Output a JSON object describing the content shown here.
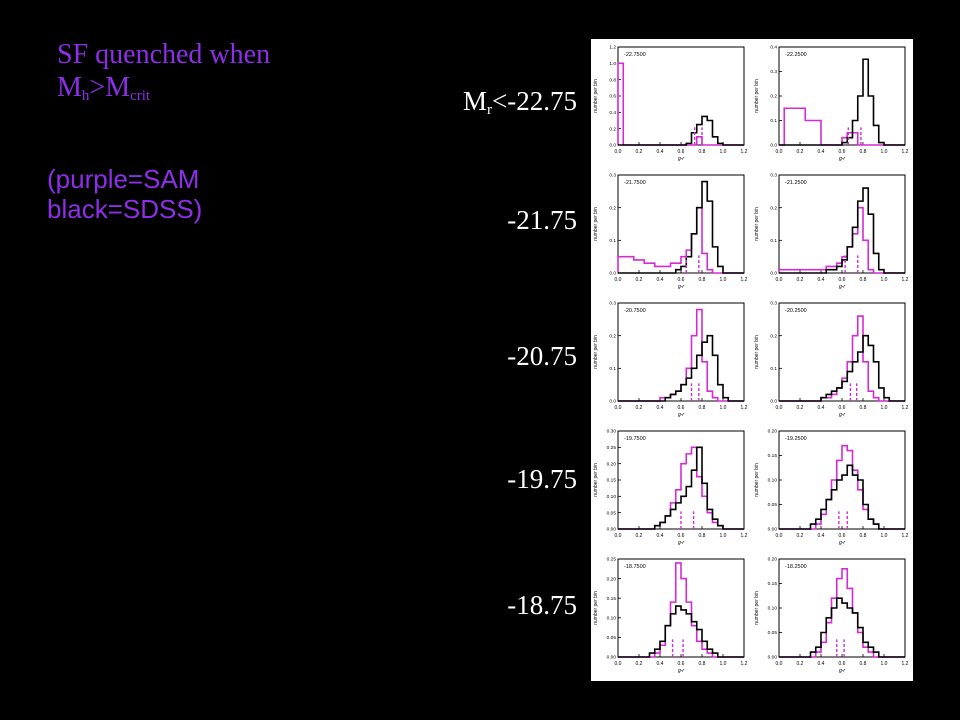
{
  "title": {
    "line1": "SF quenched when",
    "m_h": "M",
    "h_sub": "h",
    "gt": ">",
    "m_crit": "M",
    "crit_sub": "crit"
  },
  "legend_note": {
    "line1": "(purple=SAM",
    "line2": "black=SDSS)"
  },
  "row_labels": [
    {
      "main": "M",
      "sub": "r",
      "rest": "<-22.75"
    },
    {
      "text": "-21.75"
    },
    {
      "text": "-20.75"
    },
    {
      "text": "-19.75"
    },
    {
      "text": "-18.75"
    }
  ],
  "colors": {
    "background": "#000000",
    "accent_purple": "#8d2ee8",
    "sam": "#d42bd4",
    "sdss": "#000000"
  },
  "chart_data": {
    "type": "histogram_grid",
    "xlabel": "g-r",
    "ylabel": "number per bin",
    "xlim": [
      0.0,
      1.2
    ],
    "x_ticks": [
      "0.0",
      "0.2",
      "0.4",
      "0.6",
      "0.8",
      "1.0",
      "1.2"
    ],
    "bin_edges": [
      0.0,
      0.05,
      0.1,
      0.15,
      0.2,
      0.25,
      0.3,
      0.35,
      0.4,
      0.45,
      0.5,
      0.55,
      0.6,
      0.65,
      0.7,
      0.75,
      0.8,
      0.85,
      0.9,
      0.95,
      1.0,
      1.05,
      1.1,
      1.15,
      1.2
    ],
    "legend": "purple=SAM, black=SDSS",
    "panels": [
      {
        "label": "-22.7500",
        "ylim": [
          0,
          1.2
        ],
        "y_ticks": [
          "0.0",
          "0.2",
          "0.4",
          "0.6",
          "0.8",
          "1.0",
          "1.2"
        ],
        "sam": [
          1.0,
          0,
          0,
          0,
          0,
          0,
          0,
          0,
          0,
          0,
          0,
          0,
          0,
          0,
          0,
          0.1,
          0,
          0,
          0,
          0,
          0,
          0,
          0,
          0
        ],
        "sdss": [
          0,
          0,
          0,
          0,
          0,
          0,
          0,
          0,
          0,
          0,
          0,
          0,
          0,
          0.02,
          0.15,
          0.25,
          0.35,
          0.3,
          0.1,
          0.02,
          0,
          0,
          0,
          0
        ],
        "sam_median": 0.73,
        "sdss_median": 0.8
      },
      {
        "label": "-22.2500",
        "ylim": [
          0,
          0.4
        ],
        "y_ticks": [
          "0.0",
          "0.1",
          "0.2",
          "0.3",
          "0.4"
        ],
        "sam": [
          0,
          0.15,
          0.15,
          0.15,
          0.15,
          0.1,
          0.1,
          0.1,
          0,
          0,
          0,
          0,
          0.03,
          0.05,
          0.05,
          0,
          0,
          0,
          0,
          0,
          0,
          0,
          0,
          0
        ],
        "sdss": [
          0,
          0,
          0,
          0,
          0,
          0,
          0,
          0,
          0,
          0,
          0,
          0,
          0.01,
          0.03,
          0.1,
          0.2,
          0.35,
          0.2,
          0.08,
          0.01,
          0,
          0,
          0,
          0
        ],
        "sam_median": 0.66,
        "sdss_median": 0.78
      },
      {
        "label": "-21.7500",
        "ylim": [
          0,
          0.3
        ],
        "y_ticks": [
          "0.0",
          "0.1",
          "0.2",
          "0.3"
        ],
        "sam": [
          0.05,
          0.05,
          0.05,
          0.04,
          0.04,
          0.03,
          0.03,
          0.02,
          0.02,
          0.02,
          0.03,
          0.03,
          0.05,
          0.07,
          0.12,
          0.2,
          0.06,
          0.01,
          0,
          0,
          0,
          0,
          0,
          0
        ],
        "sdss": [
          0,
          0,
          0,
          0,
          0,
          0,
          0,
          0,
          0,
          0,
          0,
          0.01,
          0.02,
          0.05,
          0.12,
          0.2,
          0.28,
          0.22,
          0.08,
          0.02,
          0,
          0,
          0,
          0
        ],
        "sam_median": 0.65,
        "sdss_median": 0.77
      },
      {
        "label": "-21.2500",
        "ylim": [
          0,
          0.3
        ],
        "y_ticks": [
          "0.0",
          "0.1",
          "0.2",
          "0.3"
        ],
        "sam": [
          0.01,
          0.01,
          0.01,
          0.01,
          0.01,
          0.01,
          0.01,
          0.01,
          0.01,
          0.02,
          0.02,
          0.03,
          0.05,
          0.08,
          0.12,
          0.2,
          0.1,
          0.01,
          0,
          0,
          0,
          0,
          0,
          0
        ],
        "sdss": [
          0,
          0,
          0,
          0,
          0,
          0,
          0,
          0,
          0,
          0.01,
          0.01,
          0.02,
          0.04,
          0.08,
          0.14,
          0.22,
          0.26,
          0.18,
          0.06,
          0.01,
          0,
          0,
          0,
          0
        ],
        "sam_median": 0.63,
        "sdss_median": 0.75
      },
      {
        "label": "-20.7500",
        "ylim": [
          0,
          0.3
        ],
        "y_ticks": [
          "0.0",
          "0.1",
          "0.2",
          "0.3"
        ],
        "sam": [
          0,
          0,
          0,
          0,
          0,
          0,
          0,
          0,
          0.01,
          0.01,
          0.02,
          0.03,
          0.05,
          0.1,
          0.2,
          0.28,
          0.12,
          0.03,
          0.01,
          0,
          0,
          0,
          0,
          0
        ],
        "sdss": [
          0,
          0,
          0,
          0,
          0,
          0,
          0,
          0,
          0,
          0.01,
          0.02,
          0.03,
          0.05,
          0.07,
          0.1,
          0.14,
          0.18,
          0.2,
          0.14,
          0.05,
          0.01,
          0,
          0,
          0
        ],
        "sam_median": 0.7,
        "sdss_median": 0.77
      },
      {
        "label": "-20.2500",
        "ylim": [
          0,
          0.3
        ],
        "y_ticks": [
          "0.0",
          "0.1",
          "0.2",
          "0.3"
        ],
        "sam": [
          0,
          0,
          0,
          0,
          0,
          0,
          0,
          0,
          0.01,
          0.01,
          0.02,
          0.04,
          0.07,
          0.12,
          0.2,
          0.26,
          0.12,
          0.03,
          0.01,
          0,
          0,
          0,
          0,
          0
        ],
        "sdss": [
          0,
          0,
          0,
          0,
          0,
          0,
          0,
          0,
          0.01,
          0.02,
          0.03,
          0.04,
          0.06,
          0.09,
          0.12,
          0.15,
          0.2,
          0.17,
          0.12,
          0.04,
          0.01,
          0,
          0,
          0
        ],
        "sam_median": 0.68,
        "sdss_median": 0.74
      },
      {
        "label": "-19.7500",
        "ylim": [
          0,
          0.3
        ],
        "y_ticks": [
          "0.00",
          "0.05",
          "0.10",
          "0.15",
          "0.20",
          "0.25",
          "0.30"
        ],
        "sam": [
          0,
          0,
          0,
          0,
          0,
          0,
          0,
          0.01,
          0.02,
          0.04,
          0.08,
          0.12,
          0.2,
          0.23,
          0.25,
          0.16,
          0.1,
          0.05,
          0.02,
          0.01,
          0,
          0,
          0,
          0
        ],
        "sdss": [
          0,
          0,
          0,
          0,
          0,
          0,
          0,
          0.01,
          0.02,
          0.04,
          0.06,
          0.08,
          0.1,
          0.13,
          0.18,
          0.25,
          0.14,
          0.06,
          0.03,
          0.01,
          0,
          0,
          0,
          0
        ],
        "sam_median": 0.6,
        "sdss_median": 0.72
      },
      {
        "label": "-19.2500",
        "ylim": [
          0,
          0.2
        ],
        "y_ticks": [
          "0.00",
          "0.05",
          "0.10",
          "0.15",
          "0.20"
        ],
        "sam": [
          0,
          0,
          0,
          0,
          0,
          0,
          0,
          0.01,
          0.03,
          0.06,
          0.1,
          0.14,
          0.17,
          0.16,
          0.12,
          0.08,
          0.04,
          0.02,
          0.01,
          0,
          0,
          0,
          0,
          0
        ],
        "sdss": [
          0,
          0,
          0,
          0,
          0,
          0,
          0.01,
          0.02,
          0.04,
          0.06,
          0.08,
          0.1,
          0.11,
          0.13,
          0.11,
          0.1,
          0.05,
          0.02,
          0.01,
          0,
          0,
          0,
          0,
          0
        ],
        "sam_median": 0.57,
        "sdss_median": 0.65
      },
      {
        "label": "-18.7500",
        "ylim": [
          0,
          0.25
        ],
        "y_ticks": [
          "0.00",
          "0.05",
          "0.10",
          "0.15",
          "0.20",
          "0.25"
        ],
        "sam": [
          0,
          0,
          0,
          0,
          0,
          0,
          0,
          0.01,
          0.03,
          0.08,
          0.14,
          0.24,
          0.2,
          0.14,
          0.08,
          0.04,
          0.02,
          0.01,
          0,
          0,
          0,
          0,
          0,
          0
        ],
        "sdss": [
          0,
          0,
          0,
          0,
          0,
          0,
          0.01,
          0.02,
          0.04,
          0.08,
          0.11,
          0.13,
          0.12,
          0.11,
          0.09,
          0.07,
          0.04,
          0.02,
          0.01,
          0,
          0,
          0,
          0,
          0
        ],
        "sam_median": 0.52,
        "sdss_median": 0.62
      },
      {
        "label": "-18.2500",
        "ylim": [
          0,
          0.2
        ],
        "y_ticks": [
          "0.00",
          "0.05",
          "0.10",
          "0.15",
          "0.20"
        ],
        "sam": [
          0,
          0,
          0,
          0,
          0,
          0,
          0,
          0.01,
          0.03,
          0.07,
          0.12,
          0.16,
          0.18,
          0.14,
          0.09,
          0.05,
          0.02,
          0.01,
          0,
          0,
          0,
          0,
          0,
          0
        ],
        "sdss": [
          0,
          0,
          0,
          0,
          0,
          0,
          0.01,
          0.02,
          0.05,
          0.08,
          0.1,
          0.12,
          0.11,
          0.1,
          0.09,
          0.06,
          0.03,
          0.02,
          0.01,
          0,
          0,
          0,
          0,
          0
        ],
        "sam_median": 0.55,
        "sdss_median": 0.62
      }
    ]
  }
}
